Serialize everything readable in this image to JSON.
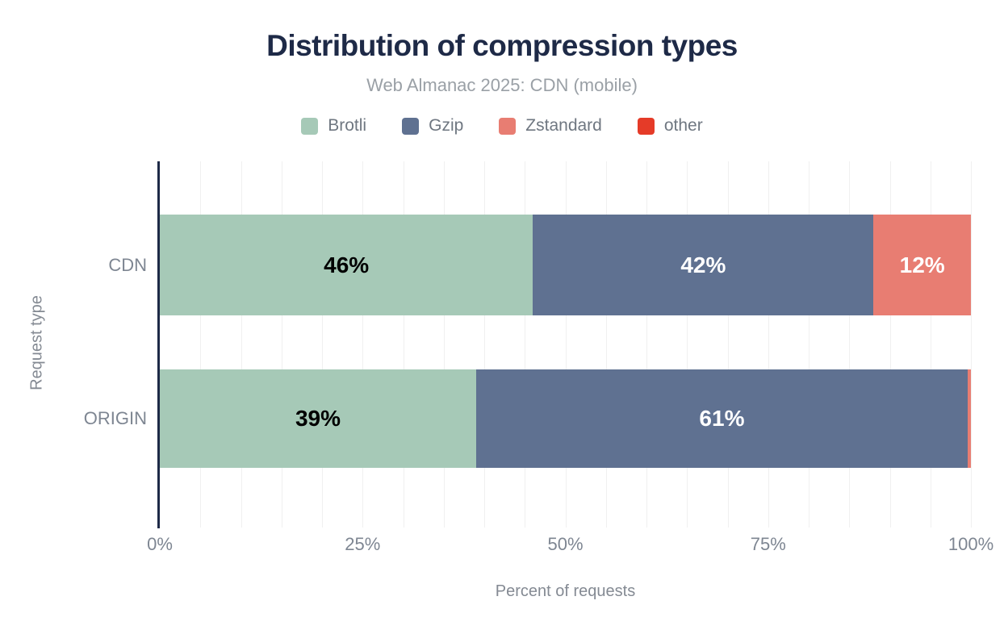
{
  "chart_data": {
    "type": "bar",
    "orientation": "horizontal",
    "stacked": true,
    "title": "Distribution of compression types",
    "subtitle": "Web Almanac 2025: CDN (mobile)",
    "xlabel": "Percent of requests",
    "ylabel": "Request type",
    "xlim": [
      0,
      100
    ],
    "grid": true,
    "grid_interval": 5,
    "legend_position": "top",
    "categories": [
      "CDN",
      "ORIGIN"
    ],
    "x_ticks": [
      {
        "label": "0%",
        "pos": 0
      },
      {
        "label": "25%",
        "pos": 25
      },
      {
        "label": "50%",
        "pos": 50
      },
      {
        "label": "75%",
        "pos": 75
      },
      {
        "label": "100%",
        "pos": 100
      }
    ],
    "series": [
      {
        "name": "Brotli",
        "color": "#a6c9b7",
        "label_color": "#000000",
        "values": [
          46,
          39
        ],
        "data_labels": [
          "46%",
          "39%"
        ]
      },
      {
        "name": "Gzip",
        "color": "#5f7191",
        "label_color": "#ffffff",
        "values": [
          42,
          60.6
        ],
        "data_labels": [
          "42%",
          "61%"
        ]
      },
      {
        "name": "Zstandard",
        "color": "#e87d72",
        "label_color": "#ffffff",
        "values": [
          12,
          0.4
        ],
        "data_labels": [
          "12%",
          ""
        ]
      },
      {
        "name": "other",
        "color": "#e53b28",
        "label_color": "#ffffff",
        "values": [
          0,
          0
        ],
        "data_labels": [
          "",
          ""
        ]
      }
    ],
    "colors": {
      "title": "#1e2a47",
      "subtitle": "#9aa0a6",
      "axis_line": "#1e2a47",
      "gridline": "#f0f0f0",
      "tick_text": "#7e8692"
    }
  }
}
